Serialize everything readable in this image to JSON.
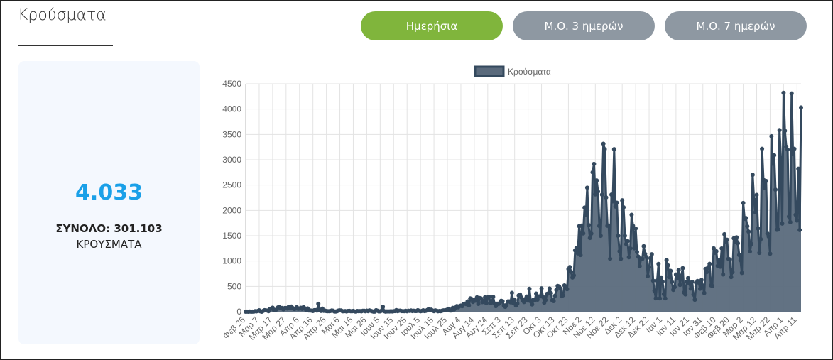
{
  "header": {
    "title": "Κρούσματα"
  },
  "buttons": [
    "Ημερήσια",
    "Μ.Ο. 3 ημερών",
    "Μ.Ο. 7 ημερών"
  ],
  "summary": {
    "value": "4.033",
    "total": "ΣΥΝΟΛΟ: 301.103",
    "label": "ΚΡΟΥΣΜΑΤΑ"
  },
  "chart_data": {
    "type": "line",
    "legend": "top",
    "categories": [
      "Φεβ 26",
      null,
      null,
      null,
      null,
      null,
      null,
      null,
      null,
      null,
      "Μαρ 7",
      null,
      null,
      null,
      null,
      null,
      null,
      null,
      null,
      null,
      "Μαρ 17",
      null,
      null,
      null,
      null,
      null,
      null,
      null,
      null,
      null,
      "Μαρ 27",
      null,
      null,
      null,
      null,
      null,
      null,
      null,
      null,
      null,
      "Απρ 6",
      null,
      null,
      null,
      null,
      null,
      null,
      null,
      null,
      null,
      "Απρ 16",
      null,
      null,
      null,
      null,
      null,
      null,
      null,
      null,
      null,
      "Απρ 26",
      null,
      null,
      null,
      null,
      null,
      null,
      null,
      null,
      null,
      "Μαι 6",
      null,
      null,
      null,
      null,
      null,
      null,
      null,
      null,
      null,
      "Μαι 16",
      null,
      null,
      null,
      null,
      null,
      null,
      null,
      null,
      null,
      "Μαι 26",
      null,
      null,
      null,
      null,
      null,
      null,
      null,
      null,
      null,
      "Ιουν 5",
      null,
      null,
      null,
      null,
      null,
      null,
      null,
      null,
      null,
      "Ιουν 15",
      null,
      null,
      null,
      null,
      null,
      null,
      null,
      null,
      null,
      "Ιουν 25",
      null,
      null,
      null,
      null,
      null,
      null,
      null,
      null,
      null,
      "Ιουλ 5",
      null,
      null,
      null,
      null,
      null,
      null,
      null,
      null,
      null,
      "Ιουλ 15",
      null,
      null,
      null,
      null,
      null,
      null,
      null,
      null,
      null,
      "Ιουλ 25",
      null,
      null,
      null,
      null,
      null,
      null,
      null,
      null,
      null,
      "Αυγ 4",
      null,
      null,
      null,
      null,
      null,
      null,
      null,
      null,
      null,
      "Αυγ 14",
      null,
      null,
      null,
      null,
      null,
      null,
      null,
      null,
      null,
      "Αυγ 24",
      null,
      null,
      null,
      null,
      null,
      null,
      null,
      null,
      null,
      "Σεπ 3",
      null,
      null,
      null,
      null,
      null,
      null,
      null,
      null,
      null,
      "Σεπ 13",
      null,
      null,
      null,
      null,
      null,
      null,
      null,
      null,
      null,
      "Σεπ 23",
      null,
      null,
      null,
      null,
      null,
      null,
      null,
      null,
      null,
      "Οκτ 3",
      null,
      null,
      null,
      null,
      null,
      null,
      null,
      null,
      null,
      "Οκτ 13",
      null,
      null,
      null,
      null,
      null,
      null,
      null,
      null,
      null,
      "Οκτ 23",
      null,
      null,
      null,
      null,
      null,
      null,
      null,
      null,
      null,
      "Νοε 2",
      null,
      null,
      null,
      null,
      null,
      null,
      null,
      null,
      null,
      "Νοε 12",
      null,
      null,
      null,
      null,
      null,
      null,
      null,
      null,
      null,
      "Νοε 22",
      null,
      null,
      null,
      null,
      null,
      null,
      null,
      null,
      null,
      "Δεκ 2",
      null,
      null,
      null,
      null,
      null,
      null,
      null,
      null,
      null,
      "Δεκ 12",
      null,
      null,
      null,
      null,
      null,
      null,
      null,
      null,
      null,
      "Δεκ 22",
      null,
      null,
      null,
      null,
      null,
      null,
      null,
      null,
      null,
      "Ιαν 1",
      null,
      null,
      null,
      null,
      null,
      null,
      null,
      null,
      null,
      "Ιαν 11",
      null,
      null,
      null,
      null,
      null,
      null,
      null,
      null,
      null,
      "Ιαν 21",
      null,
      null,
      null,
      null,
      null,
      null,
      null,
      null,
      null,
      "Ιαν 31",
      null,
      null,
      null,
      null,
      null,
      null,
      null,
      null,
      null,
      "Φεβ 10",
      null,
      null,
      null,
      null,
      null,
      null,
      null,
      null,
      null,
      "Φεβ 20",
      null,
      null,
      null,
      null,
      null,
      null,
      null,
      null,
      null,
      "Μαρ 2",
      null,
      null,
      null,
      null,
      null,
      null,
      null,
      null,
      null,
      "Μαρ 12",
      null,
      null,
      null,
      null,
      null,
      null,
      null,
      null,
      null,
      "Μαρ 22",
      null,
      null,
      null,
      null,
      null,
      null,
      null,
      null,
      null,
      "Απρ 1",
      null,
      null,
      null,
      null,
      null,
      null,
      null,
      null,
      null,
      "Απρ 11",
      null,
      null,
      null
    ],
    "series": [
      {
        "name": "Κρούσματα",
        "color": "#34495e",
        "fill": "#5a6a7c",
        "values": [
          0,
          1,
          0,
          3,
          0,
          2,
          2,
          10,
          7,
          14,
          28,
          7,
          0,
          16,
          29,
          27,
          23,
          10,
          52,
          62,
          79,
          33,
          31,
          46,
          84,
          94,
          71,
          74,
          48,
          71,
          71,
          64,
          95,
          74,
          102,
          72,
          54,
          62,
          90,
          57,
          62,
          77,
          56,
          90,
          67,
          29,
          65,
          25,
          24,
          21,
          14,
          29,
          30,
          22,
          156,
          35,
          15,
          62,
          18,
          21,
          13,
          11,
          10,
          14,
          24,
          20,
          4,
          4,
          10,
          22,
          26,
          25,
          9,
          9,
          12,
          5,
          14,
          18,
          10,
          8,
          15,
          5,
          2,
          14,
          10,
          13,
          7,
          18,
          19,
          9,
          21,
          10,
          26,
          17,
          9,
          1,
          1,
          29,
          19,
          5,
          7,
          20,
          97,
          10,
          2,
          5,
          6,
          5,
          8,
          6,
          10,
          12,
          32,
          10,
          20,
          21,
          12,
          10,
          10,
          17,
          9,
          19,
          16,
          24,
          12,
          20,
          13,
          14,
          30,
          18,
          9,
          16,
          28,
          12,
          18,
          34,
          50,
          41,
          40,
          23,
          10,
          27,
          19,
          9,
          14,
          10,
          19,
          26,
          27,
          31,
          42,
          57,
          22,
          25,
          75,
          44,
          78,
          110,
          87,
          110,
          121,
          109,
          153,
          158,
          151,
          203,
          126,
          262,
          250,
          192,
          230,
          217,
          284,
          155,
          269,
          262,
          189,
          216,
          284,
          167,
          284,
          293,
          168,
          184,
          294,
          162,
          110,
          157,
          155,
          171,
          216,
          207,
          124,
          97,
          133,
          204,
          203,
          185,
          372,
          170,
          236,
          123,
          161,
          321,
          338,
          282,
          229,
          191,
          252,
          300,
          219,
          452,
          205,
          143,
          236,
          226,
          358,
          239,
          302,
          304,
          460,
          294,
          177,
          232,
          350,
          361,
          457,
          367,
          226,
          211,
          313,
          429,
          508,
          499,
          459,
          307,
          324,
          519,
          488,
          445,
          841,
          882,
          785,
          674,
          717,
          1211,
          1262,
          1151,
          1690,
          1120,
          1702,
          1546,
          2056,
          1913,
          2448,
          1712,
          1456,
          1542,
          2752,
          2918,
          2317,
          2592,
          2371,
          1695,
          1498,
          2311,
          3316,
          3209,
          2256,
          1698,
          1701,
          1044,
          2311,
          2179,
          3209,
          2076,
          2152,
          1498,
          1193,
          1044,
          2199,
          2061,
          1498,
          1335,
          1393,
          1076,
          1250,
          1913,
          1697,
          1253,
          1642,
          1180,
          1087,
          900,
          1047,
          1045,
          1294,
          1140,
          1080,
          702,
          880,
          1057,
          1133,
          611,
          414,
          264,
          612,
          942,
          262,
          677,
          594,
          348,
          262,
          1021,
          915,
          681,
          806,
          586,
          431,
          485,
          735,
          664,
          822,
          530,
          711,
          861,
          381,
          341,
          592,
          662,
          555,
          457,
          591,
          338,
          236,
          567,
          607,
          577,
          453,
          626,
          512,
          369,
          844,
          784,
          882,
          945,
          521,
          508,
          1251,
          1163,
          1193,
          904,
          1013,
          889,
          1250,
          736,
          1530,
          1384,
          1422,
          1045,
          1033,
          683,
          781,
          1449,
          1384,
          1469,
          1351,
          1120,
          1018,
          766,
          2147,
          1834,
          1848,
          1688,
          1581,
          1190,
          1339,
          2702,
          2215,
          1963,
          2306,
          1644,
          1161,
          1431,
          3215,
          2609,
          2439,
          2581,
          1543,
          1483,
          1144,
          3465,
          2922,
          3089,
          2409,
          1618,
          1623,
          3586,
          3020,
          1740,
          4322,
          3571,
          3258,
          3201,
          1879,
          1768,
          4309,
          3110,
          3215,
          1913,
          1799,
          2823,
          1613,
          4033
        ]
      }
    ],
    "ylim": [
      0,
      4500
    ],
    "yticks": [
      0,
      500,
      1000,
      1500,
      2000,
      2500,
      3000,
      3500,
      4000,
      4500
    ],
    "grid": true
  }
}
